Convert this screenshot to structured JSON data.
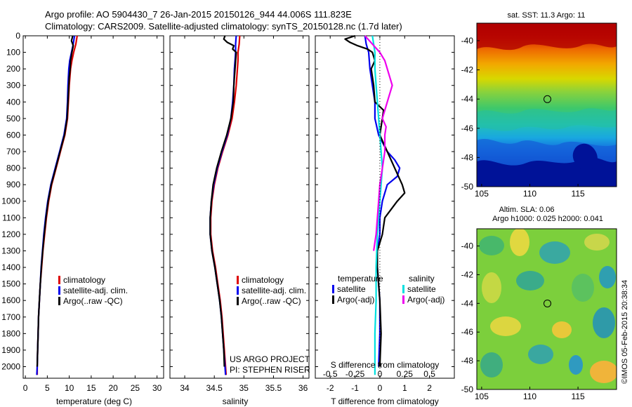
{
  "header": {
    "line1": "Argo profile: AO 5904430_7 26-Jan-2015 20150126_944 44.006S 111.823E",
    "line2": "Climatology: CARS2009. Satellite-adjusted climatology: synTS_20150128.nc (1.7d later)"
  },
  "credit": "©IMOS 05-Feb-2015 20:38:34",
  "project": {
    "line1": "US ARGO PROJECT",
    "line2": "PI: STEPHEN RISER"
  },
  "colors": {
    "climatology": "#dd0000",
    "satellite": "#0000ee",
    "argo": "#000000",
    "salinity_satellite": "#00e0e0",
    "salinity_argo": "#ee00ee"
  },
  "chart_data": [
    {
      "type": "line",
      "id": "temperature",
      "xlabel": "temperature (deg C)",
      "xlim": [
        -0.5,
        31.5
      ],
      "xticks": [
        0,
        5,
        10,
        15,
        20,
        25,
        30
      ],
      "ylim": [
        0,
        2070
      ],
      "yticks": [
        0,
        100,
        200,
        300,
        400,
        500,
        600,
        700,
        800,
        900,
        1000,
        1100,
        1200,
        1300,
        1400,
        1500,
        1600,
        1700,
        1800,
        1900,
        2000
      ],
      "legend": [
        "climatology",
        "satellite-adj. clim.",
        "Argo(..raw -QC)"
      ],
      "series": [
        {
          "name": "climatology",
          "color_key": "climatology",
          "depth": [
            0,
            50,
            100,
            150,
            200,
            300,
            400,
            500,
            600,
            700,
            800,
            900,
            1000,
            1100,
            1200,
            1300,
            1400,
            1500,
            1600,
            1700,
            1800,
            1900,
            2000,
            2050
          ],
          "values": [
            11.8,
            11.5,
            11.0,
            10.6,
            10.3,
            10.0,
            9.8,
            9.6,
            9.0,
            8.0,
            7.0,
            6.0,
            5.3,
            4.8,
            4.4,
            4.0,
            3.7,
            3.4,
            3.2,
            3.0,
            2.9,
            2.8,
            2.7,
            2.7
          ]
        },
        {
          "name": "satellite",
          "color_key": "satellite",
          "depth": [
            0,
            50,
            100,
            150,
            200,
            300,
            400,
            500,
            600,
            700,
            800,
            900,
            1000,
            1100,
            1200,
            1300,
            1400,
            1500,
            1600,
            1700,
            1800,
            1900,
            2000,
            2050
          ],
          "values": [
            11.2,
            10.9,
            10.5,
            10.1,
            9.9,
            9.7,
            9.6,
            9.4,
            8.8,
            7.8,
            6.8,
            5.8,
            5.1,
            4.6,
            4.2,
            3.9,
            3.6,
            3.4,
            3.2,
            3.0,
            2.9,
            2.8,
            2.7,
            2.6
          ]
        },
        {
          "name": "Argo",
          "color_key": "argo",
          "depth": [
            0,
            30,
            60,
            100,
            150,
            200,
            250,
            300,
            400,
            500,
            600,
            700,
            800,
            900,
            1000,
            1100,
            1200,
            1300,
            1400,
            1500,
            1600,
            1700,
            1800,
            1900,
            2000
          ],
          "values": [
            10.8,
            10.5,
            10.9,
            10.6,
            10.3,
            10.2,
            10.0,
            9.9,
            9.7,
            9.5,
            8.9,
            7.9,
            6.9,
            5.9,
            5.2,
            4.7,
            4.3,
            3.95,
            3.65,
            3.4,
            3.2,
            3.0,
            2.9,
            2.8,
            2.7
          ]
        }
      ]
    },
    {
      "type": "line",
      "id": "salinity",
      "xlabel": "salinity",
      "xlim": [
        33.75,
        36.1
      ],
      "xticks": [
        34,
        34.5,
        35,
        35.5,
        36
      ],
      "ylim": [
        0,
        2070
      ],
      "legend": [
        "climatology",
        "satellite-adj. clim.",
        "Argo(..raw -QC)"
      ],
      "series": [
        {
          "name": "climatology",
          "color_key": "climatology",
          "depth": [
            0,
            50,
            100,
            150,
            200,
            300,
            400,
            500,
            600,
            700,
            800,
            900,
            1000,
            1100,
            1200,
            1300,
            1400,
            1500,
            1600,
            1700,
            1800,
            1900,
            2000,
            2050
          ],
          "values": [
            34.93,
            34.92,
            34.9,
            34.9,
            34.89,
            34.87,
            34.84,
            34.8,
            34.73,
            34.64,
            34.56,
            34.5,
            34.46,
            34.44,
            34.44,
            34.47,
            34.52,
            34.56,
            34.6,
            34.63,
            34.65,
            34.67,
            34.69,
            34.7
          ]
        },
        {
          "name": "satellite",
          "color_key": "satellite",
          "depth": [
            0,
            50,
            100,
            150,
            200,
            300,
            400,
            500,
            600,
            700,
            800,
            900,
            1000,
            1100,
            1200,
            1300,
            1400,
            1500,
            1600,
            1700,
            1800,
            1900,
            2000,
            2050
          ],
          "values": [
            34.87,
            34.86,
            34.86,
            34.85,
            34.84,
            34.83,
            34.81,
            34.78,
            34.72,
            34.63,
            34.55,
            34.49,
            34.45,
            34.43,
            34.43,
            34.46,
            34.51,
            34.55,
            34.59,
            34.62,
            34.64,
            34.66,
            34.68,
            34.69
          ]
        },
        {
          "name": "Argo",
          "color_key": "argo",
          "depth": [
            0,
            20,
            40,
            60,
            80,
            100,
            150,
            200,
            250,
            300,
            400,
            500,
            600,
            700,
            800,
            900,
            1000,
            1100,
            1200,
            1300,
            1400,
            1500,
            1600,
            1700,
            1800,
            1900,
            2000
          ],
          "values": [
            34.68,
            34.66,
            34.72,
            34.83,
            34.81,
            34.87,
            34.86,
            34.85,
            34.84,
            34.83,
            34.82,
            34.78,
            34.71,
            34.62,
            34.54,
            34.48,
            34.45,
            34.43,
            34.43,
            34.46,
            34.51,
            34.55,
            34.59,
            34.62,
            34.64,
            34.66,
            34.67
          ]
        }
      ]
    },
    {
      "type": "line",
      "id": "differences",
      "xlabel": "T difference from climatology",
      "xlabel_top": "S difference from climatology",
      "xlim": [
        -2.6,
        3.0
      ],
      "xticks": [
        -2,
        -1,
        0,
        1,
        2
      ],
      "sticks_labels": [
        "-0.5",
        "-0.25",
        "0",
        "0.25",
        "0.5"
      ],
      "sticks_positions": [
        -2,
        -1,
        0,
        1,
        2
      ],
      "ylim": [
        0,
        2070
      ],
      "legend_titles": [
        "temperature",
        "salinity"
      ],
      "legend": [
        [
          "satellite",
          "Argo(-adj)"
        ],
        [
          "satellite",
          "Argo(-adj)"
        ]
      ],
      "series": [
        {
          "name": "T satellite",
          "color_key": "satellite",
          "depth": [
            0,
            50,
            100,
            200,
            300,
            400,
            500,
            600,
            700,
            750,
            800,
            850,
            900,
            1000,
            1100,
            1200,
            1300,
            1400,
            1600,
            1800,
            2000
          ],
          "values": [
            -0.6,
            -0.55,
            -0.45,
            -0.4,
            -0.3,
            -0.2,
            -0.2,
            -0.05,
            0.3,
            0.6,
            0.8,
            0.7,
            0.3,
            0.1,
            0.0,
            0.0,
            -0.1,
            -0.1,
            0.0,
            0.0,
            -0.05
          ]
        },
        {
          "name": "T Argo",
          "color_key": "argo",
          "depth": [
            0,
            20,
            40,
            60,
            80,
            100,
            150,
            200,
            300,
            400,
            450,
            500,
            600,
            700,
            800,
            900,
            950,
            1000,
            1100,
            1200,
            1300,
            1400,
            1600,
            1800,
            2000
          ],
          "values": [
            -1.0,
            -1.4,
            -1.2,
            -0.9,
            -0.5,
            -0.3,
            -0.2,
            -0.35,
            -0.25,
            -0.2,
            0.15,
            0.1,
            0.0,
            0.3,
            0.6,
            0.9,
            1.0,
            0.7,
            0.2,
            0.1,
            -0.1,
            -0.1,
            0.0,
            0.05,
            0.0
          ]
        },
        {
          "name": "S satellite",
          "color_key": "salinity_satellite",
          "depth": [
            0,
            50,
            100,
            200,
            300,
            400,
            500,
            600,
            700,
            800,
            900,
            1000,
            1200,
            1400,
            1600,
            1800,
            2000,
            2050
          ],
          "values": [
            -0.3,
            -0.25,
            -0.2,
            -0.2,
            -0.15,
            -0.1,
            -0.05,
            0.0,
            0.05,
            0.1,
            0.05,
            0.0,
            -0.1,
            -0.15,
            -0.15,
            -0.2,
            -0.2,
            -0.2
          ]
        },
        {
          "name": "S Argo",
          "color_key": "salinity_argo",
          "depth": [
            0,
            50,
            100,
            150,
            200,
            300,
            400,
            500,
            550,
            600,
            700,
            800,
            900,
            1000,
            1100,
            1200,
            1300
          ],
          "values": [
            -0.6,
            -0.3,
            0.0,
            0.2,
            0.3,
            0.5,
            0.3,
            0.1,
            0.25,
            0.2,
            0.2,
            0.1,
            0.0,
            -0.05,
            -0.1,
            -0.15,
            -0.25
          ]
        }
      ]
    },
    {
      "type": "heatmap",
      "id": "sst_map",
      "title": "sat. SST: 11.3 Argo: 11",
      "xlim": [
        104.5,
        119
      ],
      "ylim": [
        -50,
        -38.8
      ],
      "xticks": [
        105,
        110,
        115
      ],
      "yticks": [
        -40,
        -42,
        -44,
        -46,
        -48,
        -50
      ],
      "marker": [
        111.823,
        -44.006
      ]
    },
    {
      "type": "heatmap",
      "id": "sla_map",
      "title_line1": "Altim. SLA: 0.06",
      "title_line2": "Argo h1000: 0.025 h2000: 0.041",
      "xlim": [
        104.5,
        119
      ],
      "ylim": [
        -50,
        -38.8
      ],
      "xticks": [
        105,
        110,
        115
      ],
      "yticks": [
        -40,
        -42,
        -44,
        -46,
        -48,
        -50
      ],
      "marker": [
        111.823,
        -44.006
      ]
    }
  ]
}
